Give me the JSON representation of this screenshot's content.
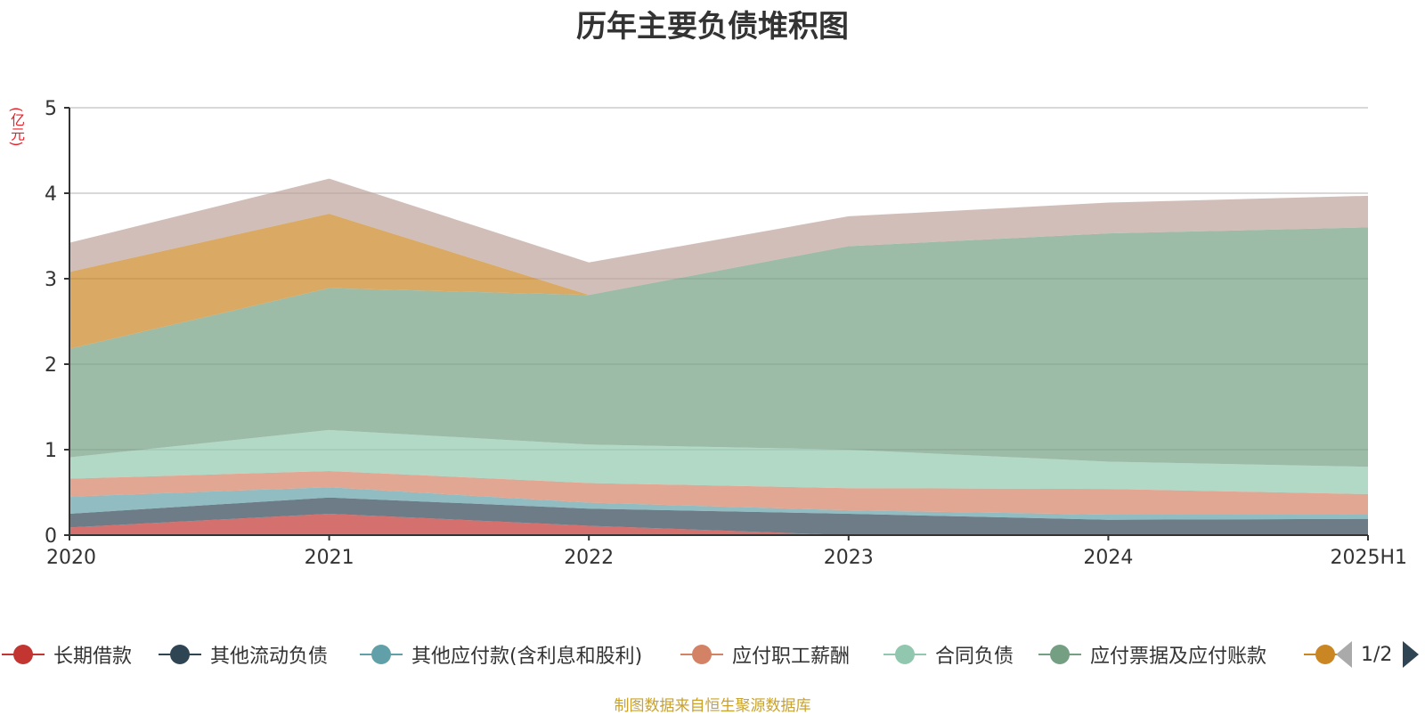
{
  "chart_data": {
    "type": "area",
    "stacked": true,
    "title": "历年主要负债堆积图",
    "unit": "(亿元)",
    "categories": [
      "2020",
      "2021",
      "2022",
      "2023",
      "2024",
      "2025H1"
    ],
    "ylim": [
      0,
      5
    ],
    "yticks": [
      0,
      1,
      2,
      3,
      4,
      5
    ],
    "grid": true,
    "legend_position": "bottom",
    "series": [
      {
        "name": "长期借款",
        "color": "#c23531",
        "values": [
          0.09,
          0.25,
          0.11,
          0.0,
          0.0,
          0.0
        ]
      },
      {
        "name": "其他流动负债",
        "color": "#2f4554",
        "values": [
          0.16,
          0.19,
          0.2,
          0.25,
          0.18,
          0.19
        ]
      },
      {
        "name": "其他应付款(含利息和股利)",
        "color": "#61a0a8",
        "values": [
          0.2,
          0.12,
          0.07,
          0.04,
          0.06,
          0.05
        ]
      },
      {
        "name": "应付职工薪酬",
        "color": "#d48265",
        "values": [
          0.21,
          0.19,
          0.23,
          0.26,
          0.3,
          0.24
        ]
      },
      {
        "name": "合同负债",
        "color": "#91c7ae",
        "values": [
          0.25,
          0.48,
          0.45,
          0.45,
          0.32,
          0.32
        ]
      },
      {
        "name": "应付票据及应付账款",
        "color": "#749f83",
        "values": [
          1.27,
          1.66,
          1.75,
          2.38,
          2.67,
          2.8
        ]
      },
      {
        "name": "",
        "color": "#ca8622",
        "values": [
          0.9,
          0.87,
          0.0,
          0.0,
          0.0,
          0.0
        ]
      },
      {
        "name": "",
        "color": "#bda29a",
        "values": [
          0.34,
          0.41,
          0.38,
          0.35,
          0.36,
          0.37
        ]
      }
    ]
  },
  "legend": {
    "items": [
      {
        "label": "长期借款",
        "color": "#c23531"
      },
      {
        "label": "其他流动负债",
        "color": "#2f4554"
      },
      {
        "label": "其他应付款(含利息和股利)",
        "color": "#61a0a8"
      },
      {
        "label": "应付职工薪酬",
        "color": "#d48265"
      },
      {
        "label": "合同负债",
        "color": "#91c7ae"
      },
      {
        "label": "应付票据及应付账款",
        "color": "#749f83"
      },
      {
        "label": "",
        "color": "#ca8622"
      }
    ],
    "page_indicator": "1/2"
  },
  "source_note": "制图数据来自恒生聚源数据库"
}
